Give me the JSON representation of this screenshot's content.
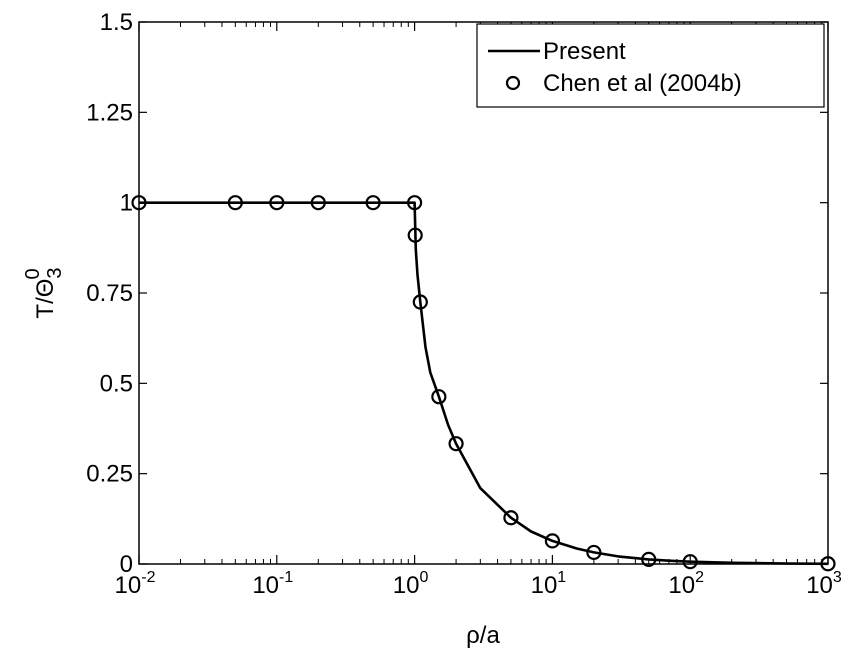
{
  "chart_data": {
    "type": "line",
    "xscale": "log",
    "xlim": [
      0.01,
      1000
    ],
    "ylim": [
      0,
      1.5
    ],
    "xlabel": "ρ/a",
    "ylabel": "T/Θ",
    "ylabel_sub": "3",
    "ylabel_sup": "0",
    "x_ticks": [
      {
        "value": 0.01,
        "base": "10",
        "exp": "-2"
      },
      {
        "value": 0.1,
        "base": "10",
        "exp": "-1"
      },
      {
        "value": 1,
        "base": "10",
        "exp": "0"
      },
      {
        "value": 10,
        "base": "10",
        "exp": "1"
      },
      {
        "value": 100,
        "base": "10",
        "exp": "2"
      },
      {
        "value": 1000,
        "base": "10",
        "exp": "3"
      }
    ],
    "y_ticks": [
      {
        "value": 0,
        "label": "0"
      },
      {
        "value": 0.25,
        "label": "0.25"
      },
      {
        "value": 0.5,
        "label": "0.5"
      },
      {
        "value": 0.75,
        "label": "0.75"
      },
      {
        "value": 1,
        "label": "1"
      },
      {
        "value": 1.25,
        "label": "1.25"
      },
      {
        "value": 1.5,
        "label": "1.5"
      }
    ],
    "legend_position": "top-right",
    "series": [
      {
        "name": "Present",
        "style": "line",
        "color": "#000000",
        "x": [
          0.01,
          1.0,
          1.02,
          1.05,
          1.1,
          1.2,
          1.3,
          1.5,
          1.75,
          2,
          3,
          5,
          7,
          10,
          15,
          20,
          30,
          50,
          70,
          100,
          200,
          500,
          1000
        ],
        "y": [
          1.0,
          1.0,
          0.87,
          0.8,
          0.725,
          0.6,
          0.53,
          0.463,
          0.385,
          0.333,
          0.21,
          0.128,
          0.09,
          0.064,
          0.043,
          0.032,
          0.021,
          0.0128,
          0.009,
          0.0064,
          0.0032,
          0.0013,
          0.0006
        ]
      },
      {
        "name": "Chen et al (2004b)",
        "style": "marker",
        "marker": "circle",
        "color": "#000000",
        "x": [
          0.01,
          0.05,
          0.1,
          0.2,
          0.5,
          1.0,
          1.01,
          1.1,
          1.5,
          2,
          5,
          10,
          20,
          50,
          100,
          1000
        ],
        "y": [
          1.0,
          1.0,
          1.0,
          1.0,
          1.0,
          1.0,
          0.91,
          0.725,
          0.463,
          0.333,
          0.128,
          0.064,
          0.032,
          0.0128,
          0.0064,
          0.0006
        ]
      }
    ]
  }
}
